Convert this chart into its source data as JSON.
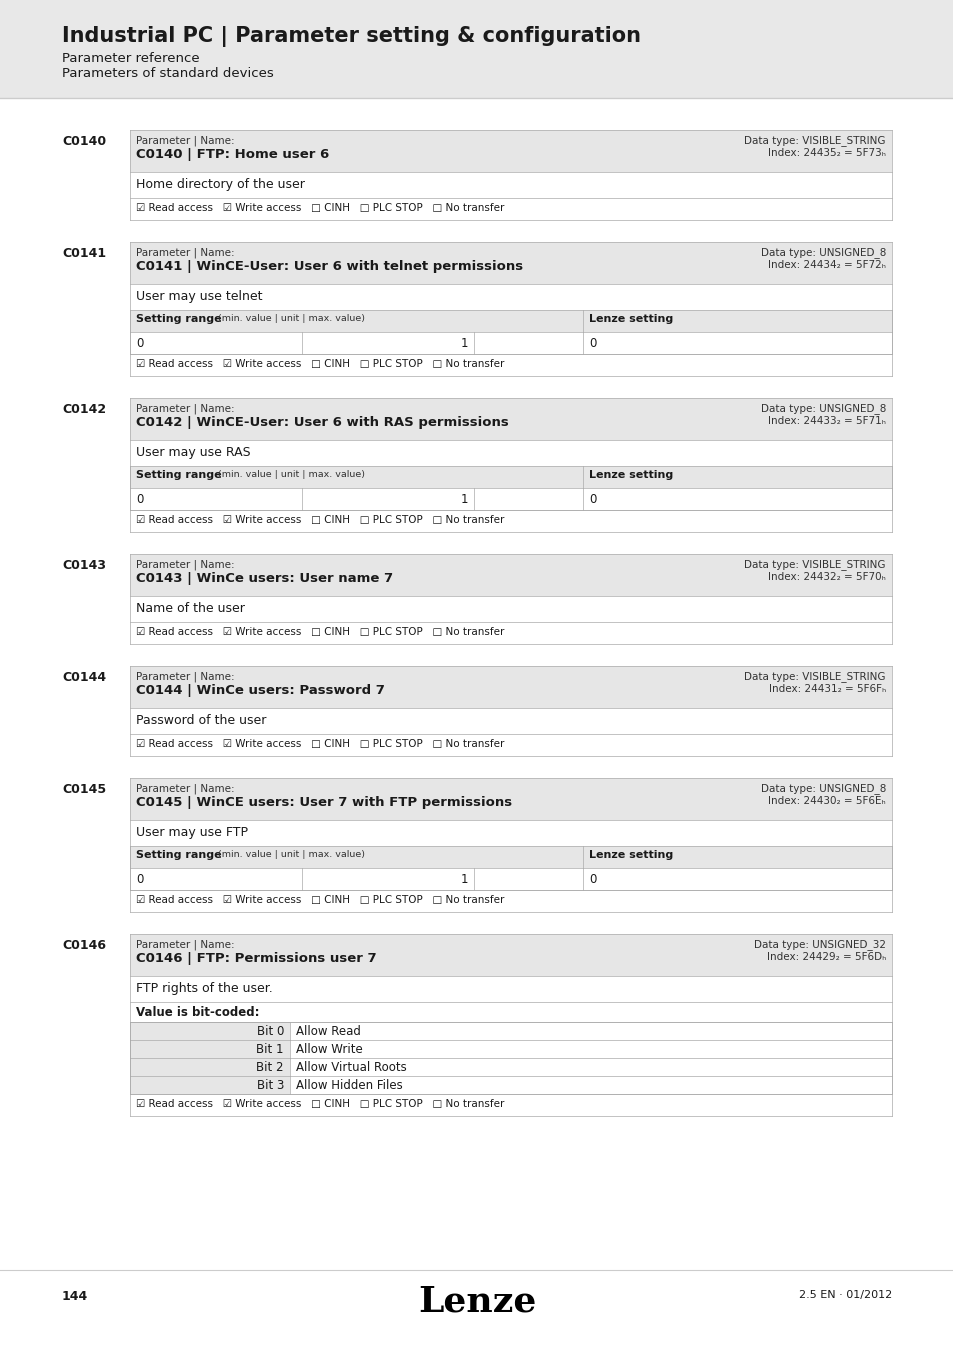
{
  "page_bg": "#e8e8e8",
  "content_bg": "#ffffff",
  "title": "Industrial PC | Parameter setting & configuration",
  "subtitle1": "Parameter reference",
  "subtitle2": "Parameters of standard devices",
  "footer_page": "144",
  "footer_version": "2.5 EN · 01/2012",
  "sections": [
    {
      "id": "C0140",
      "param_label": "Parameter | Name:",
      "param_name": "C0140 | FTP: Home user 6",
      "data_type": "Data type: VISIBLE_STRING",
      "index": "Index: 24435₂ = 5F73ₕ",
      "description": "Home directory of the user",
      "has_setting_range": false,
      "access": "☑ Read access   ☑ Write access   □ CINH   □ PLC STOP   □ No transfer"
    },
    {
      "id": "C0141",
      "param_label": "Parameter | Name:",
      "param_name": "C0141 | WinCE-User: User 6 with telnet permissions",
      "data_type": "Data type: UNSIGNED_8",
      "index": "Index: 24434₂ = 5F72ₕ",
      "description": "User may use telnet",
      "has_setting_range": true,
      "min_val": "0",
      "max_val": "1",
      "lenze_setting": "0",
      "access": "☑ Read access   ☑ Write access   □ CINH   □ PLC STOP   □ No transfer"
    },
    {
      "id": "C0142",
      "param_label": "Parameter | Name:",
      "param_name": "C0142 | WinCE-User: User 6 with RAS permissions",
      "data_type": "Data type: UNSIGNED_8",
      "index": "Index: 24433₂ = 5F71ₕ",
      "description": "User may use RAS",
      "has_setting_range": true,
      "min_val": "0",
      "max_val": "1",
      "lenze_setting": "0",
      "access": "☑ Read access   ☑ Write access   □ CINH   □ PLC STOP   □ No transfer"
    },
    {
      "id": "C0143",
      "param_label": "Parameter | Name:",
      "param_name": "C0143 | WinCe users: User name 7",
      "data_type": "Data type: VISIBLE_STRING",
      "index": "Index: 24432₂ = 5F70ₕ",
      "description": "Name of the user",
      "has_setting_range": false,
      "access": "☑ Read access   ☑ Write access   □ CINH   □ PLC STOP   □ No transfer"
    },
    {
      "id": "C0144",
      "param_label": "Parameter | Name:",
      "param_name": "C0144 | WinCe users: Password 7",
      "data_type": "Data type: VISIBLE_STRING",
      "index": "Index: 24431₂ = 5F6Fₕ",
      "description": "Password of the user",
      "has_setting_range": false,
      "access": "☑ Read access   ☑ Write access   □ CINH   □ PLC STOP   □ No transfer"
    },
    {
      "id": "C0145",
      "param_label": "Parameter | Name:",
      "param_name": "C0145 | WinCE users: User 7 with FTP permissions",
      "data_type": "Data type: UNSIGNED_8",
      "index": "Index: 24430₂ = 5F6Eₕ",
      "description": "User may use FTP",
      "has_setting_range": true,
      "min_val": "0",
      "max_val": "1",
      "lenze_setting": "0",
      "access": "☑ Read access   ☑ Write access   □ CINH   □ PLC STOP   □ No transfer"
    },
    {
      "id": "C0146",
      "param_label": "Parameter | Name:",
      "param_name": "C0146 | FTP: Permissions user 7",
      "data_type": "Data type: UNSIGNED_32",
      "index": "Index: 24429₂ = 5F6Dₕ",
      "description": "FTP rights of the user.",
      "has_setting_range": false,
      "has_bit_table": true,
      "bit_table_header": "Value is bit-coded:",
      "bit_rows": [
        [
          "Bit 0",
          "Allow Read"
        ],
        [
          "Bit 1",
          "Allow Write"
        ],
        [
          "Bit 2",
          "Allow Virtual Roots"
        ],
        [
          "Bit 3",
          "Allow Hidden Files"
        ]
      ],
      "access": "☑ Read access   ☑ Write access   □ CINH   □ PLC STOP   □ No transfer"
    }
  ]
}
